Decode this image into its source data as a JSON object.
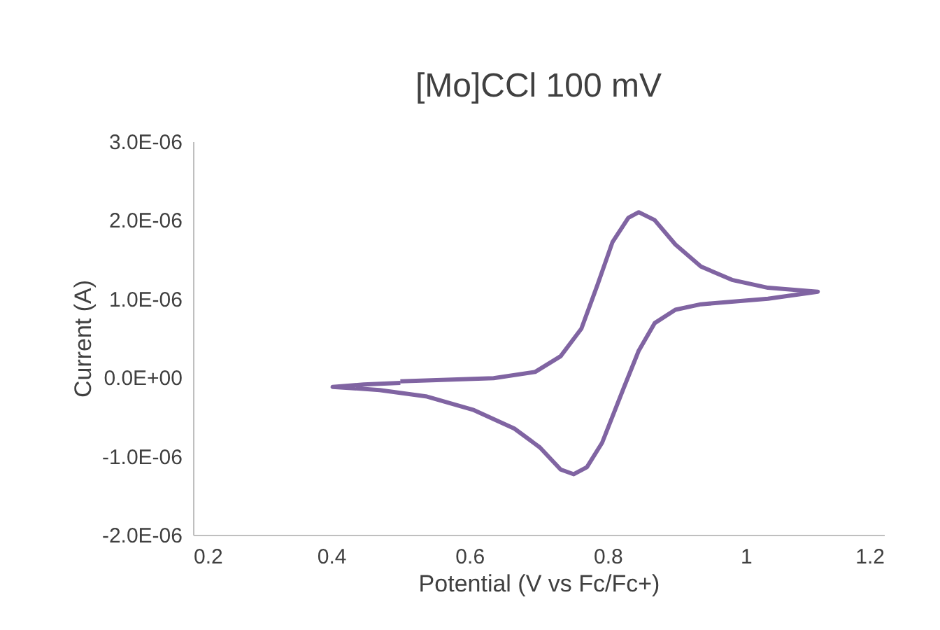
{
  "chart_data": {
    "type": "line",
    "title": "[Mo]CCl 100 mV",
    "xlabel": "Potential (V vs Fc/Fc+)",
    "ylabel": "Current (A)",
    "series": [
      {
        "color": "#8064a2",
        "x": [
          0.5,
          0.635,
          0.695,
          0.732,
          0.762,
          0.785,
          0.807,
          0.83,
          0.845,
          0.868,
          0.898,
          0.935,
          0.98,
          1.032,
          1.104,
          1.032,
          0.935,
          0.898,
          0.868,
          0.845,
          0.823,
          0.792,
          0.77,
          0.751,
          0.732,
          0.702,
          0.665,
          0.605,
          0.537,
          0.47,
          0.402,
          0.447,
          0.5
        ],
        "values": [
          -5e-08,
          -1e-08,
          7e-08,
          2.7e-07,
          6.2e-07,
          1.17e-06,
          1.72e-06,
          2.03e-06,
          2.1e-06,
          2e-06,
          1.69e-06,
          1.41e-06,
          1.24e-06,
          1.14e-06,
          1.09e-06,
          1e-06,
          9.3e-07,
          8.6e-07,
          6.9e-07,
          3.4e-07,
          -1.4e-07,
          -8.3e-07,
          -1.14e-06,
          -1.23e-06,
          -1.17e-06,
          -8.9e-07,
          -6.5e-07,
          -4.1e-07,
          -2.4e-07,
          -1.6e-07,
          -1.2e-07,
          -9e-08,
          -7e-08
        ]
      }
    ],
    "xlim": [
      0.2,
      1.2
    ],
    "xticks": [
      0.2,
      0.4,
      0.6,
      0.8,
      1,
      1.2
    ],
    "ylim": [
      -2e-06,
      3e-06
    ],
    "yticks": [
      {
        "value": -2e-06,
        "label": "-2.0E-06"
      },
      {
        "value": -1e-06,
        "label": "-1.0E-06"
      },
      {
        "value": 0,
        "label": "0.0E+00"
      },
      {
        "value": 1e-06,
        "label": "1.0E-06"
      },
      {
        "value": 2e-06,
        "label": "2.0E-06"
      },
      {
        "value": 3e-06,
        "label": "3.0E-06"
      }
    ],
    "grid": false,
    "legend": false,
    "marker": "none",
    "line_style": "solid"
  }
}
